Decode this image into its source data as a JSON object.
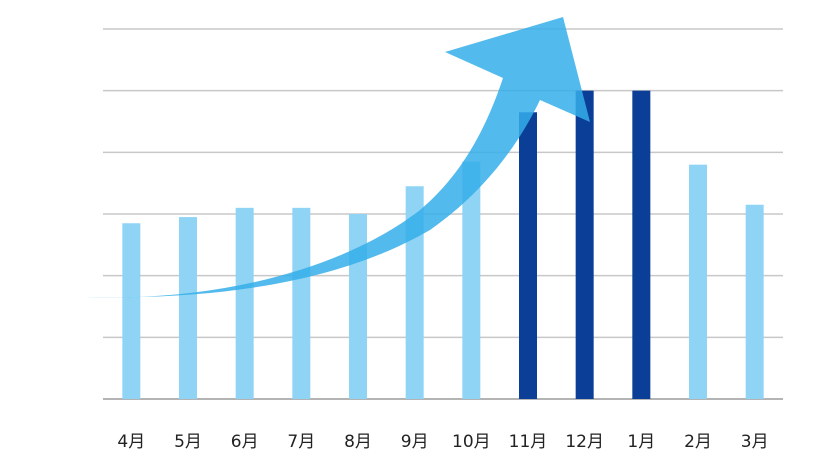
{
  "chart_data": {
    "type": "bar",
    "categories": [
      "4月",
      "5月",
      "6月",
      "7月",
      "8月",
      "9月",
      "10月",
      "11月",
      "12月",
      "1月",
      "2月",
      "3月"
    ],
    "values": [
      2.85,
      2.95,
      3.1,
      3.1,
      3.0,
      3.45,
      3.85,
      4.65,
      5.0,
      5.0,
      3.8,
      3.15
    ],
    "highlighted": [
      false,
      false,
      false,
      false,
      false,
      false,
      false,
      true,
      true,
      true,
      false,
      false
    ],
    "ylim": [
      0,
      6
    ],
    "y_gridlines": [
      1,
      2,
      3,
      4,
      5,
      6
    ],
    "grid": true,
    "legend": "none",
    "annotation": "upward-trend-arrow",
    "colors": {
      "bar": "#8fd4f5",
      "bar_highlight": "#0b3f97",
      "arrow": "#35aeea",
      "grid": "#c8c8c8",
      "axis": "#b4b4b4"
    }
  }
}
